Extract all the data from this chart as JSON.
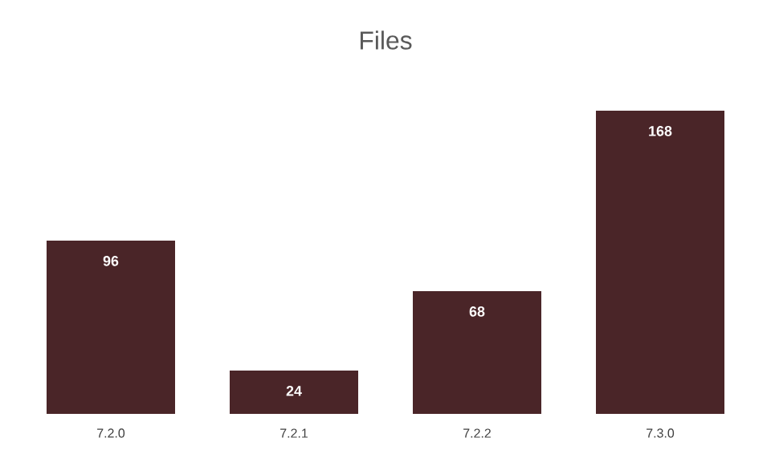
{
  "chart_data": {
    "type": "bar",
    "title": "Files",
    "categories": [
      "7.2.0",
      "7.2.1",
      "7.2.2",
      "7.3.0"
    ],
    "values": [
      96,
      24,
      68,
      168
    ],
    "color": "#4a2528",
    "data_labels": true
  }
}
